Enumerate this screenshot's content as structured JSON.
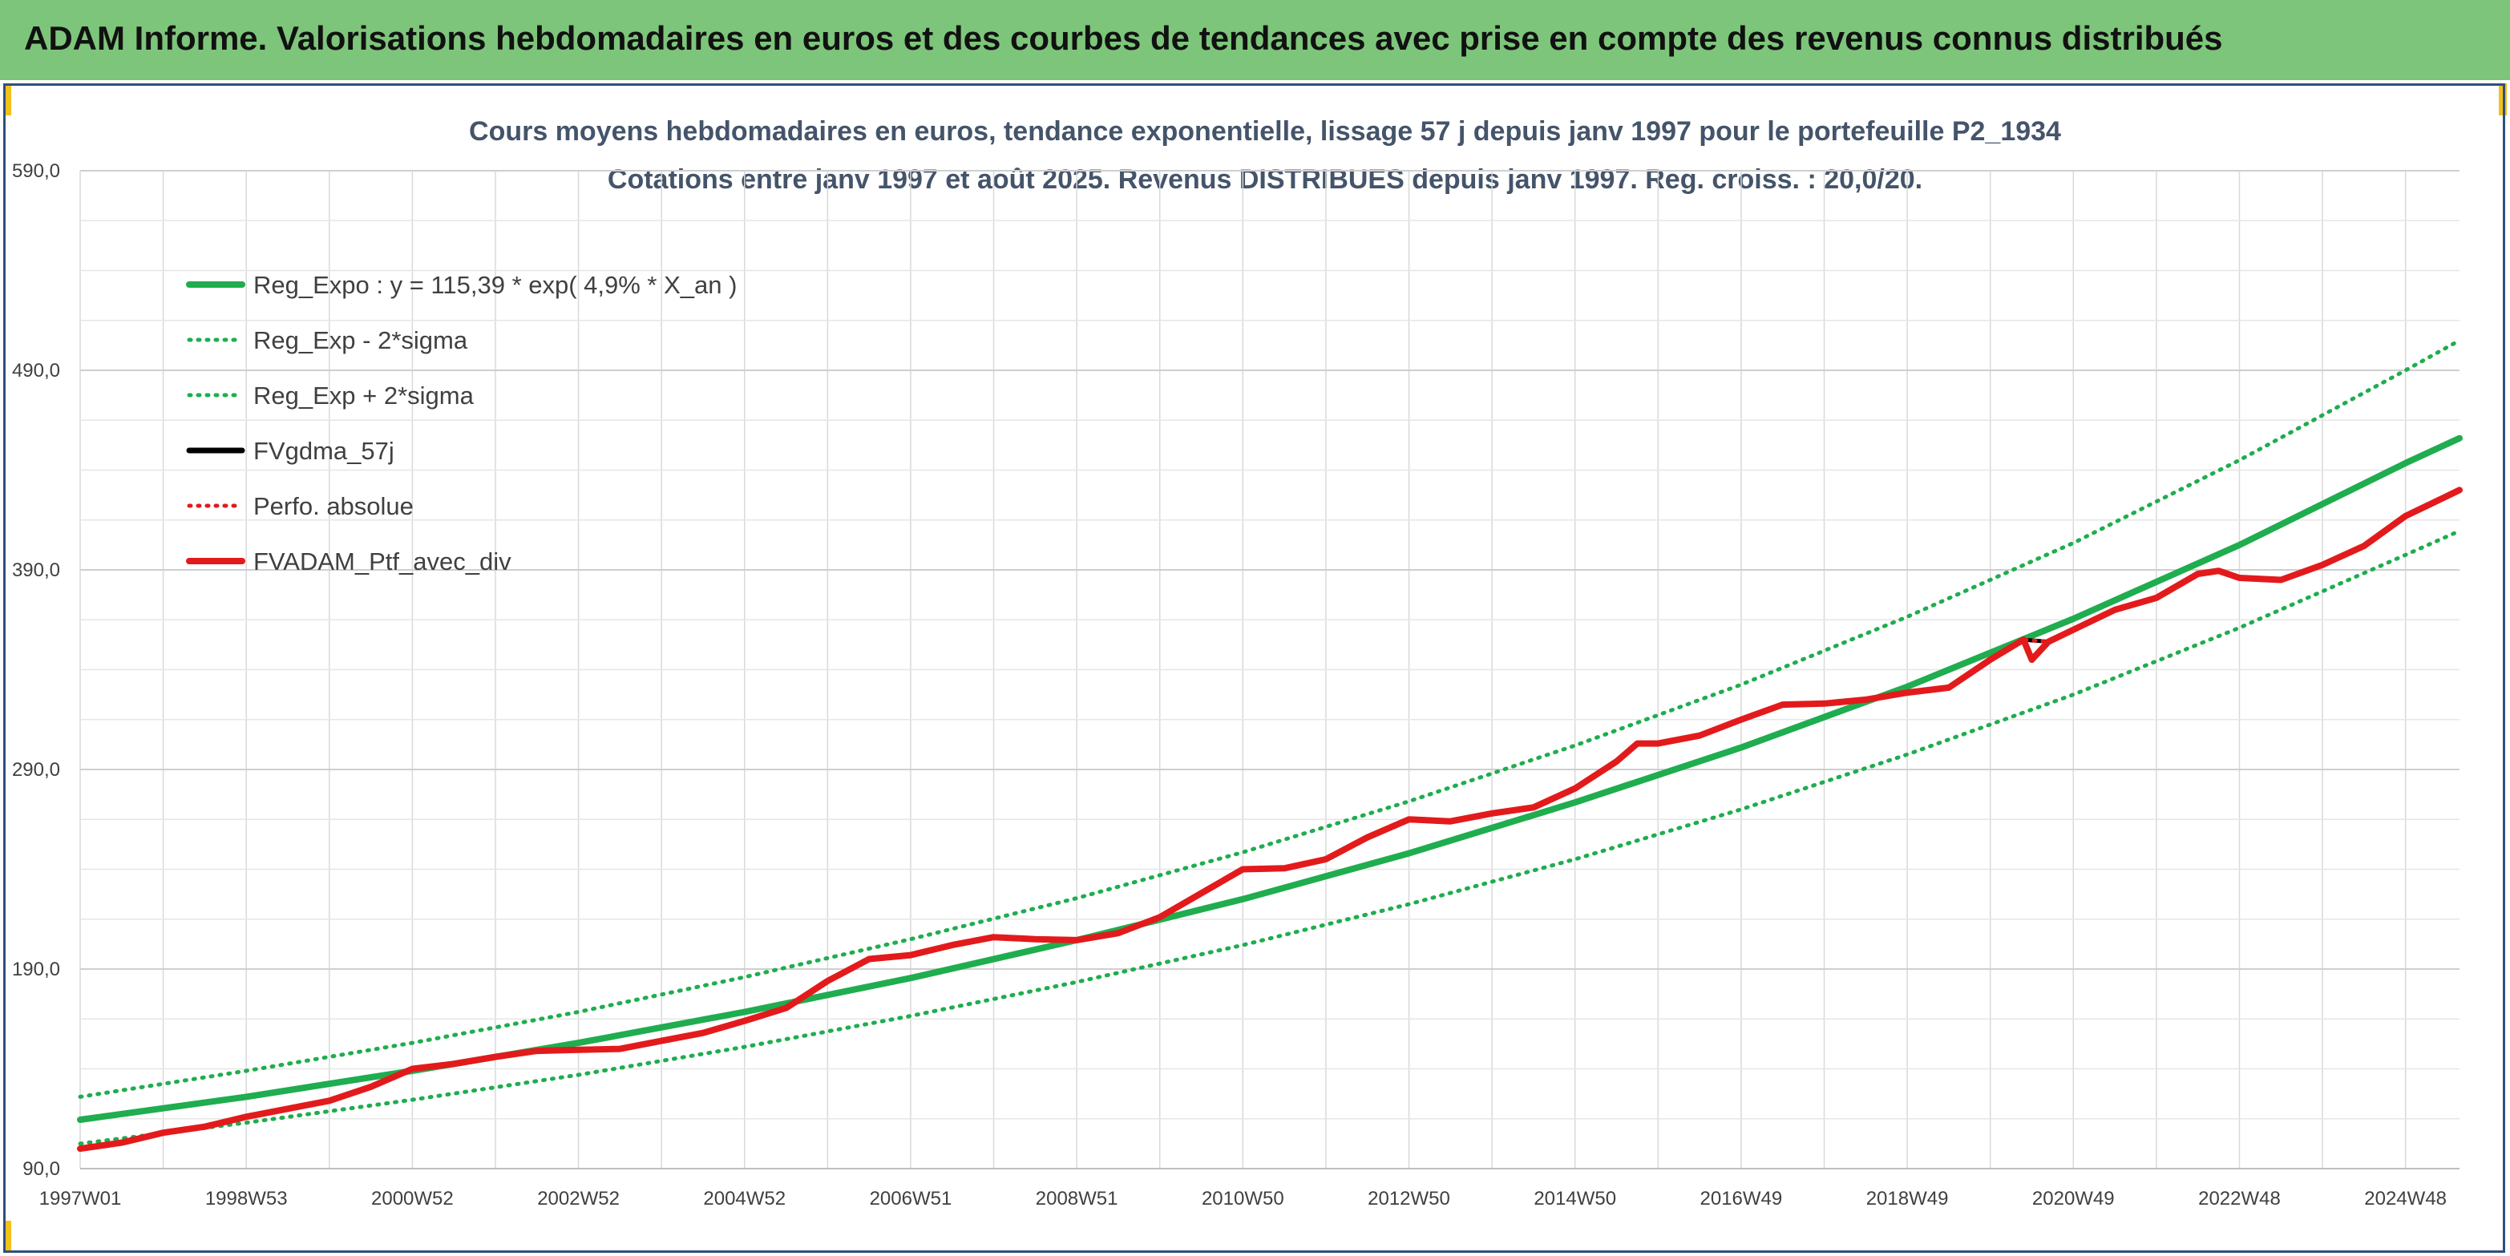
{
  "header": {
    "title": "ADAM Informe. Valorisations hebdomadaires en euros et des courbes de tendances avec prise en compte des revenus connus distribués",
    "background": "#7dc57a"
  },
  "chart_data": {
    "type": "line",
    "title_line1": "Cours moyens hebdomadaires en euros, tendance exponentielle, lissage 57 j depuis janv 1997 pour le portefeuille P2_1934",
    "title_line2": "Cotations entre janv 1997 et août 2025. Revenus DISTRIBUES depuis janv 1997. Reg. croiss. : 20,0/20.",
    "xlabel": "",
    "ylabel": "",
    "x_range": [
      1997.0,
      2025.65
    ],
    "ylim": [
      90,
      590
    ],
    "y_ticks": [
      {
        "value": 90,
        "label": "90,0"
      },
      {
        "value": 190,
        "label": "190,0"
      },
      {
        "value": 290,
        "label": "290,0"
      },
      {
        "value": 390,
        "label": "390,0"
      },
      {
        "value": 490,
        "label": "490,0"
      },
      {
        "value": 590,
        "label": "590,0"
      }
    ],
    "x_ticks": [
      {
        "value": 1997.0,
        "label": "1997W01"
      },
      {
        "value": 1999.0,
        "label": "1998W53"
      },
      {
        "value": 2001.0,
        "label": "2000W52"
      },
      {
        "value": 2003.0,
        "label": "2002W52"
      },
      {
        "value": 2005.0,
        "label": "2004W52"
      },
      {
        "value": 2007.0,
        "label": "2006W51"
      },
      {
        "value": 2009.0,
        "label": "2008W51"
      },
      {
        "value": 2011.0,
        "label": "2010W50"
      },
      {
        "value": 2013.0,
        "label": "2012W50"
      },
      {
        "value": 2015.0,
        "label": "2014W50"
      },
      {
        "value": 2017.0,
        "label": "2016W49"
      },
      {
        "value": 2019.0,
        "label": "2018W49"
      },
      {
        "value": 2021.0,
        "label": "2020W49"
      },
      {
        "value": 2023.0,
        "label": "2022W48"
      },
      {
        "value": 2025.0,
        "label": "2024W48"
      }
    ],
    "grid": true,
    "legend_position": "top-left",
    "series": [
      {
        "name": "Reg_Expo : y = 115,39 * exp( 4,9% * X_an )",
        "style": "solid",
        "color": "#1fad4f",
        "points": [
          [
            1997.0,
            114.5
          ],
          [
            1999.0,
            126.0
          ],
          [
            2001.0,
            139.0
          ],
          [
            2003.0,
            153.0
          ],
          [
            2005.0,
            168.5
          ],
          [
            2007.0,
            185.5
          ],
          [
            2009.0,
            204.5
          ],
          [
            2011.0,
            225.0
          ],
          [
            2013.0,
            248.0
          ],
          [
            2015.0,
            273.5
          ],
          [
            2017.0,
            301.0
          ],
          [
            2019.0,
            331.5
          ],
          [
            2021.0,
            365.5
          ],
          [
            2023.0,
            402.5
          ],
          [
            2025.0,
            443.5
          ],
          [
            2025.65,
            456.0
          ]
        ]
      },
      {
        "name": "Reg_Exp - 2*sigma",
        "style": "dotted",
        "color": "#1fad4f",
        "points": [
          [
            1997.0,
            102.5
          ],
          [
            1999.0,
            113.0
          ],
          [
            2001.0,
            124.5
          ],
          [
            2003.0,
            137.0
          ],
          [
            2005.0,
            151.0
          ],
          [
            2007.0,
            166.5
          ],
          [
            2009.0,
            183.5
          ],
          [
            2011.0,
            202.0
          ],
          [
            2013.0,
            222.5
          ],
          [
            2015.0,
            245.0
          ],
          [
            2017.0,
            270.0
          ],
          [
            2019.0,
            297.5
          ],
          [
            2021.0,
            327.5
          ],
          [
            2023.0,
            361.0
          ],
          [
            2025.0,
            397.5
          ],
          [
            2025.65,
            409.5
          ]
        ]
      },
      {
        "name": "Reg_Exp + 2*sigma",
        "style": "dotted",
        "color": "#1fad4f",
        "points": [
          [
            1997.0,
            126.0
          ],
          [
            1999.0,
            139.0
          ],
          [
            2001.0,
            153.0
          ],
          [
            2003.0,
            168.5
          ],
          [
            2005.0,
            186.0
          ],
          [
            2007.0,
            205.0
          ],
          [
            2009.0,
            225.5
          ],
          [
            2011.0,
            248.5
          ],
          [
            2013.0,
            274.0
          ],
          [
            2015.0,
            302.0
          ],
          [
            2017.0,
            332.5
          ],
          [
            2019.0,
            366.5
          ],
          [
            2021.0,
            403.5
          ],
          [
            2023.0,
            445.0
          ],
          [
            2025.0,
            490.0
          ],
          [
            2025.65,
            505.0
          ]
        ]
      },
      {
        "name": "FVgdma_57j",
        "style": "solid",
        "color": "#000000",
        "points": [
          [
            1997.0,
            100.0
          ],
          [
            1997.5,
            103.0
          ],
          [
            1998.0,
            108.0
          ],
          [
            1998.5,
            111.0
          ],
          [
            1999.0,
            116.0
          ],
          [
            1999.5,
            120.0
          ],
          [
            2000.0,
            124.0
          ],
          [
            2000.5,
            131.0
          ],
          [
            2001.0,
            140.0
          ],
          [
            2001.5,
            142.5
          ],
          [
            2002.0,
            146.0
          ],
          [
            2002.5,
            149.0
          ],
          [
            2003.0,
            149.5
          ],
          [
            2003.5,
            150.0
          ],
          [
            2004.0,
            154.0
          ],
          [
            2004.5,
            158.0
          ],
          [
            2005.0,
            164.0
          ],
          [
            2005.5,
            170.5
          ],
          [
            2006.0,
            184.0
          ],
          [
            2006.5,
            195.0
          ],
          [
            2007.0,
            197.0
          ],
          [
            2007.5,
            202.0
          ],
          [
            2008.0,
            206.0
          ],
          [
            2008.5,
            205.0
          ],
          [
            2009.0,
            204.5
          ],
          [
            2009.5,
            208.0
          ],
          [
            2010.0,
            216.0
          ],
          [
            2010.5,
            228.0
          ],
          [
            2011.0,
            240.0
          ],
          [
            2011.5,
            240.5
          ],
          [
            2012.0,
            245.0
          ],
          [
            2012.5,
            256.0
          ],
          [
            2013.0,
            265.0
          ],
          [
            2013.5,
            264.0
          ],
          [
            2014.0,
            268.0
          ],
          [
            2014.5,
            271.0
          ],
          [
            2015.0,
            280.5
          ],
          [
            2015.5,
            294.0
          ],
          [
            2015.75,
            303.0
          ],
          [
            2016.0,
            303.0
          ],
          [
            2016.5,
            307.0
          ],
          [
            2017.0,
            315.0
          ],
          [
            2017.5,
            322.5
          ],
          [
            2018.0,
            323.0
          ],
          [
            2018.5,
            325.0
          ],
          [
            2019.0,
            328.5
          ],
          [
            2019.5,
            331.0
          ],
          [
            2020.0,
            345.0
          ],
          [
            2020.4,
            355.0
          ],
          [
            2020.7,
            354.0
          ],
          [
            2021.0,
            360.0
          ],
          [
            2021.5,
            370.0
          ],
          [
            2022.0,
            376.0
          ],
          [
            2022.5,
            388.0
          ],
          [
            2022.75,
            389.5
          ],
          [
            2023.0,
            386.0
          ],
          [
            2023.5,
            385.0
          ],
          [
            2024.0,
            392.5
          ],
          [
            2024.5,
            402.0
          ],
          [
            2025.0,
            417.0
          ],
          [
            2025.5,
            427.0
          ],
          [
            2025.65,
            430.0
          ]
        ]
      },
      {
        "name": "Perfo. absolue",
        "style": "dotted",
        "color": "#e31a1c",
        "points": [
          [
            1997.0,
            100.0
          ],
          [
            1997.5,
            103.0
          ],
          [
            1998.0,
            108.0
          ],
          [
            1998.5,
            111.0
          ],
          [
            1999.0,
            116.0
          ],
          [
            1999.5,
            120.0
          ],
          [
            2000.0,
            124.0
          ],
          [
            2000.5,
            131.0
          ],
          [
            2001.0,
            140.0
          ],
          [
            2001.5,
            142.5
          ],
          [
            2002.0,
            146.0
          ],
          [
            2002.5,
            149.0
          ],
          [
            2003.0,
            149.5
          ],
          [
            2003.5,
            150.0
          ],
          [
            2004.0,
            154.0
          ],
          [
            2004.5,
            158.0
          ],
          [
            2005.0,
            164.0
          ],
          [
            2005.5,
            170.5
          ],
          [
            2006.0,
            184.0
          ],
          [
            2006.5,
            195.0
          ],
          [
            2007.0,
            197.0
          ],
          [
            2007.5,
            202.0
          ],
          [
            2008.0,
            206.0
          ],
          [
            2008.5,
            205.0
          ],
          [
            2009.0,
            204.5
          ],
          [
            2009.5,
            208.0
          ],
          [
            2010.0,
            216.0
          ],
          [
            2010.5,
            228.0
          ],
          [
            2011.0,
            240.0
          ],
          [
            2011.5,
            240.5
          ],
          [
            2012.0,
            245.0
          ],
          [
            2012.5,
            256.0
          ],
          [
            2013.0,
            265.0
          ],
          [
            2013.5,
            264.0
          ],
          [
            2014.0,
            268.0
          ],
          [
            2014.5,
            271.0
          ],
          [
            2015.0,
            280.5
          ],
          [
            2015.5,
            294.0
          ],
          [
            2015.75,
            303.0
          ],
          [
            2016.0,
            303.0
          ],
          [
            2016.5,
            307.0
          ],
          [
            2017.0,
            315.0
          ],
          [
            2017.5,
            322.5
          ],
          [
            2018.0,
            323.0
          ],
          [
            2018.5,
            325.0
          ],
          [
            2019.0,
            328.5
          ],
          [
            2019.5,
            331.0
          ],
          [
            2020.0,
            345.0
          ],
          [
            2020.4,
            355.0
          ],
          [
            2020.7,
            354.0
          ],
          [
            2021.0,
            360.0
          ],
          [
            2021.5,
            370.0
          ],
          [
            2022.0,
            376.0
          ],
          [
            2022.5,
            388.0
          ],
          [
            2022.75,
            389.5
          ],
          [
            2023.0,
            386.0
          ],
          [
            2023.5,
            385.0
          ],
          [
            2024.0,
            392.5
          ],
          [
            2024.5,
            402.0
          ],
          [
            2025.0,
            417.0
          ],
          [
            2025.5,
            427.0
          ],
          [
            2025.65,
            430.0
          ]
        ]
      },
      {
        "name": "FVADAM_Ptf_avec_div",
        "style": "solid",
        "color": "#e31a1c",
        "points": [
          [
            1997.0,
            100.0
          ],
          [
            1997.5,
            103.0
          ],
          [
            1998.0,
            108.0
          ],
          [
            1998.5,
            111.0
          ],
          [
            1999.0,
            116.0
          ],
          [
            1999.5,
            120.0
          ],
          [
            2000.0,
            124.0
          ],
          [
            2000.5,
            131.0
          ],
          [
            2001.0,
            140.0
          ],
          [
            2001.5,
            142.5
          ],
          [
            2002.0,
            146.0
          ],
          [
            2002.5,
            149.0
          ],
          [
            2003.0,
            149.5
          ],
          [
            2003.5,
            150.0
          ],
          [
            2004.0,
            154.0
          ],
          [
            2004.5,
            158.0
          ],
          [
            2005.0,
            164.0
          ],
          [
            2005.5,
            170.5
          ],
          [
            2006.0,
            184.0
          ],
          [
            2006.5,
            195.0
          ],
          [
            2007.0,
            197.0
          ],
          [
            2007.5,
            202.0
          ],
          [
            2008.0,
            206.0
          ],
          [
            2008.5,
            205.0
          ],
          [
            2009.0,
            204.5
          ],
          [
            2009.5,
            208.0
          ],
          [
            2010.0,
            216.0
          ],
          [
            2010.5,
            228.0
          ],
          [
            2011.0,
            240.0
          ],
          [
            2011.5,
            240.5
          ],
          [
            2012.0,
            245.0
          ],
          [
            2012.5,
            256.0
          ],
          [
            2013.0,
            265.0
          ],
          [
            2013.5,
            264.0
          ],
          [
            2014.0,
            268.0
          ],
          [
            2014.5,
            271.0
          ],
          [
            2015.0,
            280.5
          ],
          [
            2015.5,
            294.0
          ],
          [
            2015.75,
            303.0
          ],
          [
            2016.0,
            303.0
          ],
          [
            2016.5,
            307.0
          ],
          [
            2017.0,
            315.0
          ],
          [
            2017.5,
            322.5
          ],
          [
            2018.0,
            323.0
          ],
          [
            2018.5,
            325.0
          ],
          [
            2019.0,
            328.5
          ],
          [
            2019.5,
            331.0
          ],
          [
            2020.0,
            345.0
          ],
          [
            2020.4,
            355.0
          ],
          [
            2020.5,
            345.0
          ],
          [
            2020.7,
            354.0
          ],
          [
            2021.0,
            360.0
          ],
          [
            2021.5,
            370.0
          ],
          [
            2022.0,
            376.0
          ],
          [
            2022.5,
            388.0
          ],
          [
            2022.75,
            389.5
          ],
          [
            2023.0,
            386.0
          ],
          [
            2023.5,
            385.0
          ],
          [
            2024.0,
            392.5
          ],
          [
            2024.5,
            402.0
          ],
          [
            2025.0,
            417.0
          ],
          [
            2025.5,
            427.0
          ],
          [
            2025.65,
            430.0
          ]
        ]
      }
    ]
  }
}
